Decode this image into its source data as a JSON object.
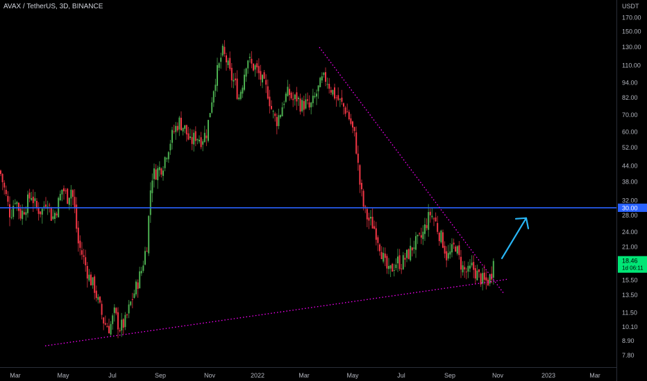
{
  "header": {
    "title": "AVAX / TetherUS, 3D, BINANCE"
  },
  "colors": {
    "background": "#000000",
    "up": "#4caf50",
    "down": "#f23645",
    "wick": "#8a8a8a",
    "support_line": "#ff00ff",
    "horizontal_line": "#2962ff",
    "arrow": "#29b6f6",
    "price_badge": "#00e676",
    "axis_text": "#b2b5be"
  },
  "chart_data": {
    "type": "candlestick",
    "title": "AVAX / TetherUS, 3D, BINANCE",
    "y_unit_label": "USDT",
    "y_scale": "log",
    "y_range": [
      7.0,
      200.0
    ],
    "y_ticks": [
      "170.00",
      "150.00",
      "130.00",
      "110.00",
      "94.00",
      "82.00",
      "70.00",
      "60.00",
      "52.00",
      "44.00",
      "38.00",
      "32.00",
      "28.00",
      "24.00",
      "21.00",
      "15.50",
      "13.50",
      "11.50",
      "10.10",
      "8.90",
      "7.80"
    ],
    "x_ticks": [
      "Mar",
      "May",
      "Jul",
      "Sep",
      "Nov",
      "2022",
      "Mar",
      "May",
      "Jul",
      "Sep",
      "Nov",
      "2023",
      "Mar"
    ],
    "horizontal_level": {
      "value": 30.0,
      "label": "30.00"
    },
    "current_price": {
      "value": 18.46,
      "label": "18.46",
      "countdown": "1d 06:11"
    },
    "price_path": [
      {
        "t": 0,
        "p": 42
      },
      {
        "t": 8,
        "p": 34
      },
      {
        "t": 15,
        "p": 28
      },
      {
        "t": 22,
        "p": 33
      },
      {
        "t": 30,
        "p": 28
      },
      {
        "t": 38,
        "p": 31
      },
      {
        "t": 45,
        "p": 34
      },
      {
        "t": 52,
        "p": 30
      },
      {
        "t": 60,
        "p": 29
      },
      {
        "t": 68,
        "p": 33
      },
      {
        "t": 75,
        "p": 27
      },
      {
        "t": 82,
        "p": 30
      },
      {
        "t": 90,
        "p": 36
      },
      {
        "t": 97,
        "p": 33
      },
      {
        "t": 103,
        "p": 36
      },
      {
        "t": 108,
        "p": 29
      },
      {
        "t": 112,
        "p": 22
      },
      {
        "t": 120,
        "p": 19
      },
      {
        "t": 128,
        "p": 16
      },
      {
        "t": 136,
        "p": 14.5
      },
      {
        "t": 142,
        "p": 12.5
      },
      {
        "t": 150,
        "p": 10.5
      },
      {
        "t": 158,
        "p": 10.0
      },
      {
        "t": 165,
        "p": 11.5
      },
      {
        "t": 172,
        "p": 10.0
      },
      {
        "t": 180,
        "p": 10.5
      },
      {
        "t": 188,
        "p": 12.5
      },
      {
        "t": 196,
        "p": 14.5
      },
      {
        "t": 204,
        "p": 17
      },
      {
        "t": 212,
        "p": 22
      },
      {
        "t": 218,
        "p": 40
      },
      {
        "t": 226,
        "p": 42
      },
      {
        "t": 234,
        "p": 44
      },
      {
        "t": 242,
        "p": 52
      },
      {
        "t": 250,
        "p": 60
      },
      {
        "t": 258,
        "p": 66
      },
      {
        "t": 266,
        "p": 62
      },
      {
        "t": 274,
        "p": 54
      },
      {
        "t": 282,
        "p": 58
      },
      {
        "t": 290,
        "p": 56
      },
      {
        "t": 298,
        "p": 60
      },
      {
        "t": 304,
        "p": 78
      },
      {
        "t": 310,
        "p": 98
      },
      {
        "t": 316,
        "p": 110
      },
      {
        "t": 320,
        "p": 125
      },
      {
        "t": 326,
        "p": 115
      },
      {
        "t": 332,
        "p": 100
      },
      {
        "t": 338,
        "p": 94
      },
      {
        "t": 344,
        "p": 82
      },
      {
        "t": 350,
        "p": 96
      },
      {
        "t": 356,
        "p": 120
      },
      {
        "t": 362,
        "p": 110
      },
      {
        "t": 368,
        "p": 108
      },
      {
        "t": 374,
        "p": 100
      },
      {
        "t": 380,
        "p": 92
      },
      {
        "t": 386,
        "p": 86
      },
      {
        "t": 392,
        "p": 72
      },
      {
        "t": 398,
        "p": 66
      },
      {
        "t": 404,
        "p": 72
      },
      {
        "t": 410,
        "p": 82
      },
      {
        "t": 416,
        "p": 86
      },
      {
        "t": 422,
        "p": 80
      },
      {
        "t": 428,
        "p": 82
      },
      {
        "t": 434,
        "p": 76
      },
      {
        "t": 440,
        "p": 78
      },
      {
        "t": 446,
        "p": 74
      },
      {
        "t": 452,
        "p": 80
      },
      {
        "t": 458,
        "p": 88
      },
      {
        "t": 464,
        "p": 96
      },
      {
        "t": 470,
        "p": 98
      },
      {
        "t": 476,
        "p": 90
      },
      {
        "t": 482,
        "p": 84
      },
      {
        "t": 488,
        "p": 80
      },
      {
        "t": 494,
        "p": 76
      },
      {
        "t": 500,
        "p": 72
      },
      {
        "t": 506,
        "p": 64
      },
      {
        "t": 512,
        "p": 56
      },
      {
        "t": 518,
        "p": 38
      },
      {
        "t": 524,
        "p": 30
      },
      {
        "t": 530,
        "p": 27
      },
      {
        "t": 536,
        "p": 26
      },
      {
        "t": 542,
        "p": 24
      },
      {
        "t": 548,
        "p": 21
      },
      {
        "t": 554,
        "p": 18
      },
      {
        "t": 560,
        "p": 16.5
      },
      {
        "t": 566,
        "p": 17.5
      },
      {
        "t": 572,
        "p": 18.5
      },
      {
        "t": 578,
        "p": 18
      },
      {
        "t": 584,
        "p": 19
      },
      {
        "t": 590,
        "p": 20
      },
      {
        "t": 596,
        "p": 21.5
      },
      {
        "t": 602,
        "p": 22
      },
      {
        "t": 608,
        "p": 23
      },
      {
        "t": 614,
        "p": 26
      },
      {
        "t": 620,
        "p": 28.5
      },
      {
        "t": 626,
        "p": 27
      },
      {
        "t": 632,
        "p": 24
      },
      {
        "t": 638,
        "p": 22
      },
      {
        "t": 644,
        "p": 19
      },
      {
        "t": 650,
        "p": 20
      },
      {
        "t": 656,
        "p": 21.5
      },
      {
        "t": 662,
        "p": 18.5
      },
      {
        "t": 668,
        "p": 17
      },
      {
        "t": 674,
        "p": 16.5
      },
      {
        "t": 680,
        "p": 17.5
      },
      {
        "t": 686,
        "p": 16.5
      },
      {
        "t": 692,
        "p": 15.8
      },
      {
        "t": 698,
        "p": 15.2
      },
      {
        "t": 704,
        "p": 15.5
      },
      {
        "t": 708,
        "p": 16.5
      },
      {
        "t": 712,
        "p": 18.46
      }
    ],
    "support_line": [
      {
        "t": 65,
        "p": 8.5
      },
      {
        "t": 730,
        "p": 15.6
      }
    ],
    "resistance_line": [
      {
        "t": 460,
        "p": 130
      },
      {
        "t": 725,
        "p": 13.8
      }
    ],
    "projection_arrow": [
      {
        "t": 723,
        "p": 18.9
      },
      {
        "t": 758,
        "p": 27.3
      }
    ]
  }
}
